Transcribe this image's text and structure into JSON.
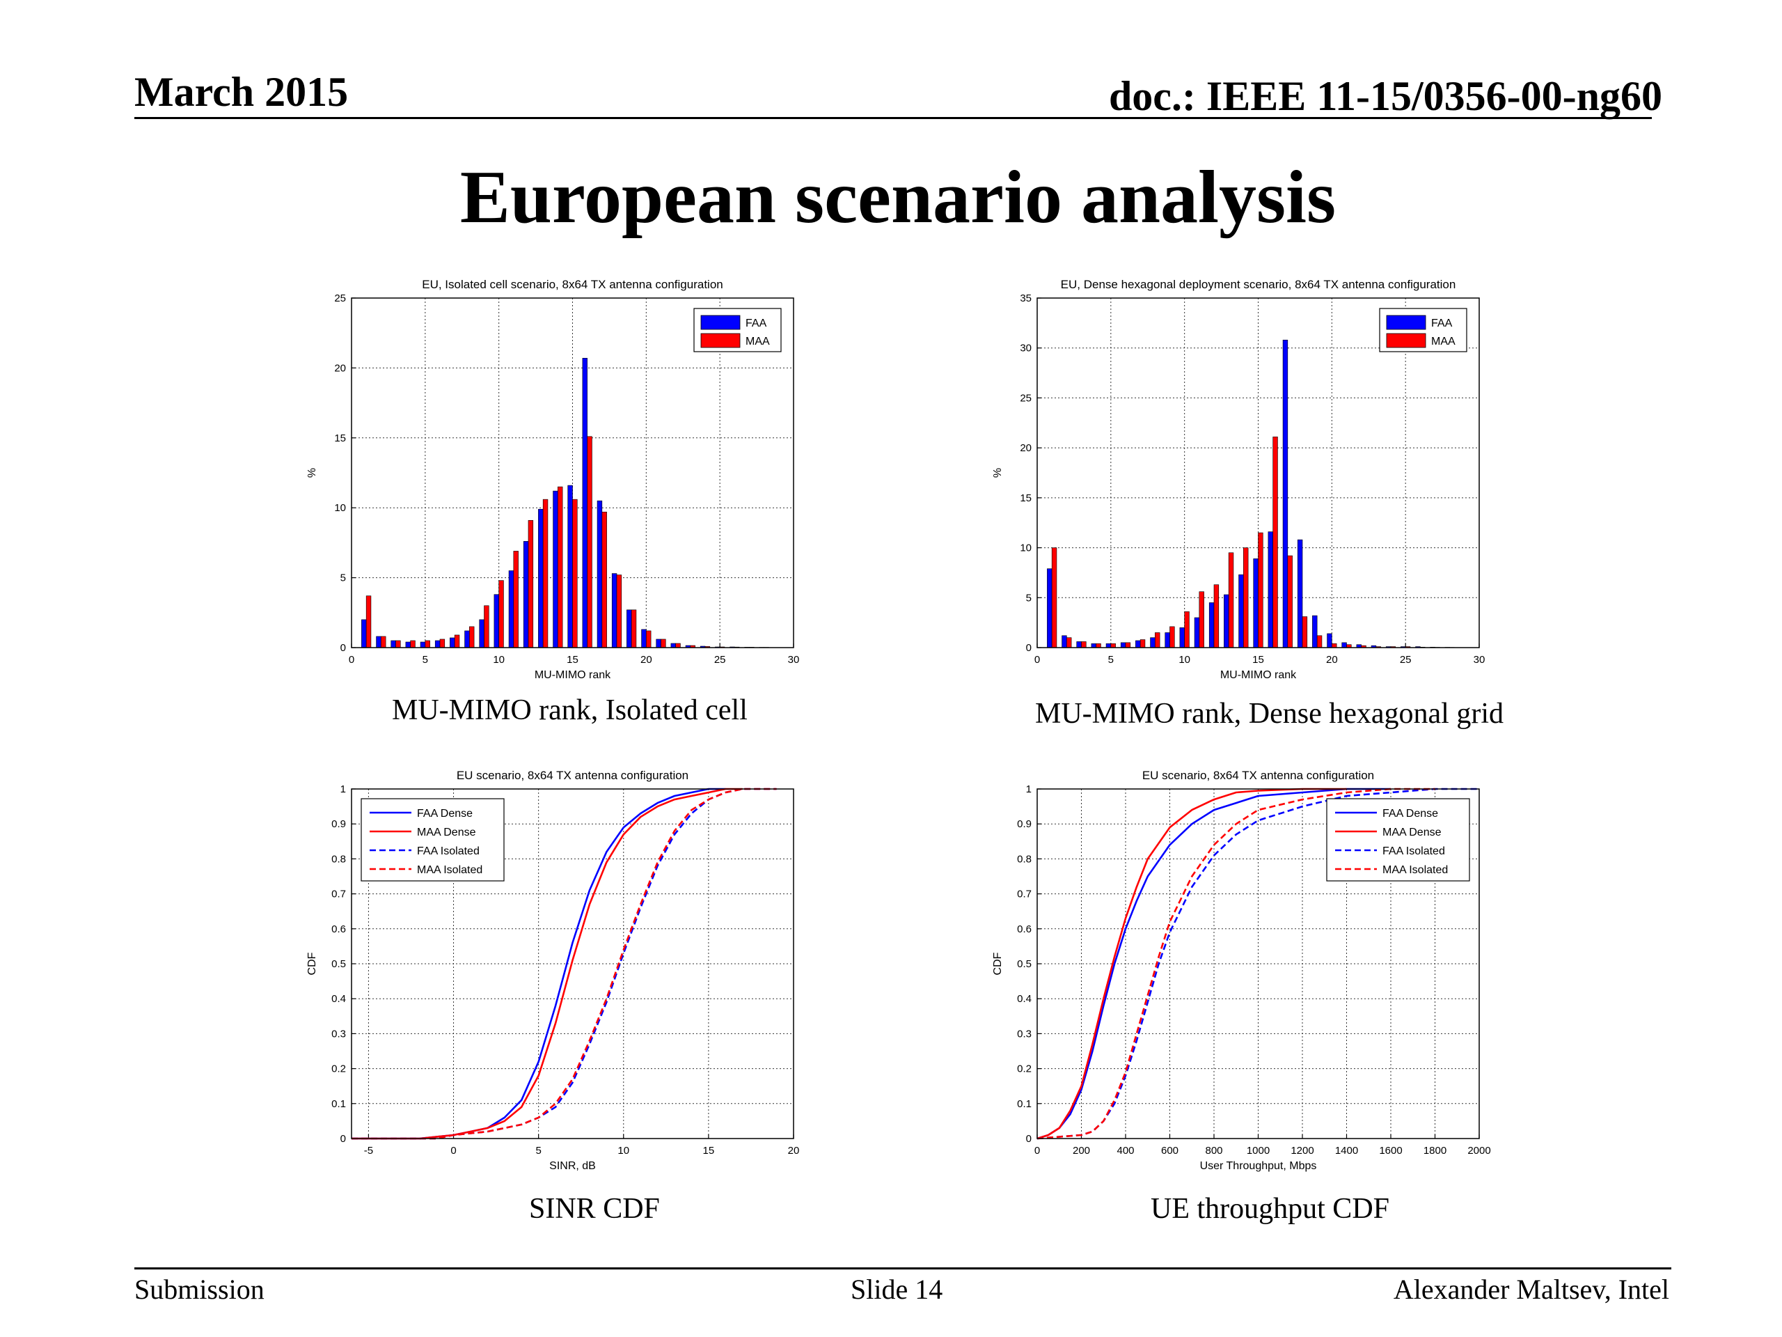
{
  "header": {
    "date": "March 2015",
    "doc_id": "doc.: IEEE 11-15/0356-00-ng60"
  },
  "slide_title": "European scenario analysis",
  "captions": {
    "rank_isolated": "MU-MIMO rank, Isolated cell",
    "rank_dense": "MU-MIMO rank, Dense hexagonal grid",
    "sinr_cdf": "SINR CDF",
    "throughput_cdf": "UE throughput CDF"
  },
  "footer": {
    "left": "Submission",
    "center": "Slide 14",
    "right": "Alexander Maltsev, Intel"
  },
  "colors": {
    "faa": "#0000ff",
    "maa": "#ff0000"
  },
  "chart_data": [
    {
      "id": "rank_isolated",
      "type": "bar",
      "title": "EU, Isolated cell scenario, 8x64 TX antenna configuration",
      "xlabel": "MU-MIMO rank",
      "ylabel": "%",
      "xlim": [
        0,
        30
      ],
      "ylim": [
        0,
        25
      ],
      "xticks": [
        0,
        5,
        10,
        15,
        20,
        25,
        30
      ],
      "yticks": [
        0,
        5,
        10,
        15,
        20,
        25
      ],
      "grid": true,
      "legend_position": "top-right",
      "categories": [
        1,
        2,
        3,
        4,
        5,
        6,
        7,
        8,
        9,
        10,
        11,
        12,
        13,
        14,
        15,
        16,
        17,
        18,
        19,
        20,
        21,
        22,
        23,
        24,
        25,
        26,
        27,
        28
      ],
      "series": [
        {
          "name": "FAA",
          "color": "#0000ff",
          "values": [
            2.0,
            0.8,
            0.5,
            0.4,
            0.4,
            0.5,
            0.7,
            1.2,
            2.0,
            3.8,
            5.5,
            7.6,
            9.9,
            11.2,
            11.6,
            20.7,
            10.5,
            5.3,
            2.7,
            1.3,
            0.6,
            0.3,
            0.15,
            0.1,
            0.05,
            0.05,
            0.03,
            0.02
          ]
        },
        {
          "name": "MAA",
          "color": "#ff0000",
          "values": [
            3.7,
            0.8,
            0.5,
            0.5,
            0.5,
            0.6,
            0.9,
            1.5,
            3.0,
            4.8,
            6.9,
            9.1,
            10.6,
            11.5,
            10.6,
            15.1,
            9.7,
            5.2,
            2.7,
            1.2,
            0.6,
            0.3,
            0.15,
            0.08,
            0.05,
            0.04,
            0.03,
            0.02
          ]
        }
      ]
    },
    {
      "id": "rank_dense",
      "type": "bar",
      "title": "EU, Dense hexagonal deployment scenario, 8x64 TX antenna configuration",
      "xlabel": "MU-MIMO rank",
      "ylabel": "%",
      "xlim": [
        0,
        30
      ],
      "ylim": [
        0,
        35
      ],
      "xticks": [
        0,
        5,
        10,
        15,
        20,
        25,
        30
      ],
      "yticks": [
        0,
        5,
        10,
        15,
        20,
        25,
        30,
        35
      ],
      "grid": true,
      "legend_position": "top-right",
      "categories": [
        1,
        2,
        3,
        4,
        5,
        6,
        7,
        8,
        9,
        10,
        11,
        12,
        13,
        14,
        15,
        16,
        17,
        18,
        19,
        20,
        21,
        22,
        23,
        24,
        25,
        26,
        27,
        28
      ],
      "series": [
        {
          "name": "FAA",
          "color": "#0000ff",
          "values": [
            7.9,
            1.2,
            0.6,
            0.4,
            0.4,
            0.5,
            0.7,
            1.0,
            1.5,
            2.0,
            3.0,
            4.5,
            5.3,
            7.3,
            8.9,
            11.6,
            30.8,
            10.8,
            3.2,
            1.4,
            0.5,
            0.3,
            0.2,
            0.1,
            0.1,
            0.1,
            0.05,
            0.03
          ]
        },
        {
          "name": "MAA",
          "color": "#ff0000",
          "values": [
            10.0,
            1.0,
            0.6,
            0.4,
            0.4,
            0.5,
            0.8,
            1.5,
            2.1,
            3.6,
            5.6,
            6.3,
            9.5,
            10.0,
            11.5,
            21.1,
            9.2,
            3.1,
            1.2,
            0.4,
            0.3,
            0.2,
            0.1,
            0.1,
            0.1,
            0.05,
            0.03,
            0.02
          ]
        }
      ]
    },
    {
      "id": "sinr_cdf",
      "type": "line",
      "title": "EU scenario, 8x64 TX antenna configuration",
      "xlabel": "SINR, dB",
      "ylabel": "CDF",
      "xlim": [
        -6,
        20
      ],
      "ylim": [
        0,
        1
      ],
      "xticks": [
        -5,
        0,
        5,
        10,
        15,
        20
      ],
      "yticks": [
        0,
        0.1,
        0.2,
        0.3,
        0.4,
        0.5,
        0.6,
        0.7,
        0.8,
        0.9,
        1
      ],
      "grid": true,
      "legend_position": "top-left",
      "series": [
        {
          "name": "FAA Dense",
          "color": "#0000ff",
          "dash": false,
          "x": [
            -6,
            -2,
            0,
            1,
            2,
            3,
            4,
            5,
            6,
            7,
            8,
            9,
            10,
            11,
            12,
            13,
            14,
            15,
            16
          ],
          "y": [
            0,
            0,
            0.01,
            0.02,
            0.03,
            0.06,
            0.11,
            0.22,
            0.38,
            0.56,
            0.71,
            0.82,
            0.89,
            0.93,
            0.96,
            0.98,
            0.99,
            1.0,
            1.0
          ]
        },
        {
          "name": "MAA Dense",
          "color": "#ff0000",
          "dash": false,
          "x": [
            -6,
            -2,
            0,
            1,
            2,
            3,
            4,
            5,
            6,
            7,
            8,
            9,
            10,
            11,
            12,
            13,
            14,
            15,
            16,
            17
          ],
          "y": [
            0,
            0,
            0.01,
            0.02,
            0.03,
            0.05,
            0.09,
            0.18,
            0.33,
            0.51,
            0.67,
            0.79,
            0.87,
            0.92,
            0.95,
            0.97,
            0.98,
            0.99,
            1.0,
            1.0
          ]
        },
        {
          "name": "FAA Isolated",
          "color": "#0000ff",
          "dash": true,
          "x": [
            -6,
            -1,
            0,
            2,
            4,
            5,
            6,
            7,
            8,
            9,
            10,
            11,
            12,
            13,
            14,
            15,
            16,
            17,
            18,
            19
          ],
          "y": [
            0,
            0,
            0.01,
            0.02,
            0.04,
            0.06,
            0.09,
            0.16,
            0.27,
            0.39,
            0.53,
            0.66,
            0.78,
            0.87,
            0.93,
            0.97,
            0.99,
            1.0,
            1.0,
            1.0
          ]
        },
        {
          "name": "MAA Isolated",
          "color": "#ff0000",
          "dash": true,
          "x": [
            -6,
            -1,
            0,
            2,
            4,
            5,
            6,
            7,
            8,
            9,
            10,
            11,
            12,
            13,
            14,
            15,
            16,
            17,
            18,
            19
          ],
          "y": [
            0,
            0,
            0.01,
            0.02,
            0.04,
            0.06,
            0.1,
            0.17,
            0.28,
            0.4,
            0.54,
            0.67,
            0.79,
            0.88,
            0.94,
            0.97,
            0.99,
            1.0,
            1.0,
            1.0
          ]
        }
      ]
    },
    {
      "id": "throughput_cdf",
      "type": "line",
      "title": "EU scenario, 8x64 TX antenna configuration",
      "xlabel": "User Throughput, Mbps",
      "ylabel": "CDF",
      "xlim": [
        0,
        2000
      ],
      "ylim": [
        0,
        1
      ],
      "xticks": [
        0,
        200,
        400,
        600,
        800,
        1000,
        1200,
        1400,
        1600,
        1800,
        2000
      ],
      "yticks": [
        0,
        0.1,
        0.2,
        0.3,
        0.4,
        0.5,
        0.6,
        0.7,
        0.8,
        0.9,
        1
      ],
      "grid": true,
      "legend_position": "top-right",
      "series": [
        {
          "name": "FAA Dense",
          "color": "#0000ff",
          "dash": false,
          "x": [
            0,
            50,
            100,
            150,
            200,
            250,
            300,
            350,
            400,
            450,
            500,
            600,
            700,
            800,
            900,
            1000,
            1200,
            1400,
            1600
          ],
          "y": [
            0,
            0.01,
            0.03,
            0.07,
            0.14,
            0.25,
            0.38,
            0.5,
            0.6,
            0.68,
            0.75,
            0.84,
            0.9,
            0.94,
            0.96,
            0.98,
            0.99,
            1.0,
            1.0
          ]
        },
        {
          "name": "MAA Dense",
          "color": "#ff0000",
          "dash": false,
          "x": [
            0,
            50,
            100,
            150,
            200,
            250,
            300,
            350,
            400,
            450,
            500,
            600,
            700,
            800,
            900,
            1000,
            1200,
            1400
          ],
          "y": [
            0,
            0.01,
            0.03,
            0.08,
            0.15,
            0.27,
            0.4,
            0.52,
            0.63,
            0.72,
            0.8,
            0.89,
            0.94,
            0.97,
            0.99,
            0.995,
            1.0,
            1.0
          ]
        },
        {
          "name": "FAA Isolated",
          "color": "#0000ff",
          "dash": true,
          "x": [
            0,
            200,
            250,
            300,
            350,
            400,
            450,
            500,
            550,
            600,
            700,
            800,
            900,
            1000,
            1200,
            1400,
            1600,
            1800,
            2000
          ],
          "y": [
            0,
            0.01,
            0.02,
            0.05,
            0.1,
            0.18,
            0.28,
            0.39,
            0.5,
            0.59,
            0.72,
            0.81,
            0.87,
            0.91,
            0.95,
            0.98,
            0.99,
            1.0,
            1.0
          ]
        },
        {
          "name": "MAA Isolated",
          "color": "#ff0000",
          "dash": true,
          "x": [
            0,
            200,
            250,
            300,
            350,
            400,
            450,
            500,
            550,
            600,
            700,
            800,
            900,
            1000,
            1200,
            1400,
            1600,
            1800
          ],
          "y": [
            0,
            0.01,
            0.02,
            0.05,
            0.11,
            0.19,
            0.3,
            0.41,
            0.52,
            0.62,
            0.75,
            0.84,
            0.9,
            0.94,
            0.97,
            0.99,
            1.0,
            1.0
          ]
        }
      ]
    }
  ]
}
